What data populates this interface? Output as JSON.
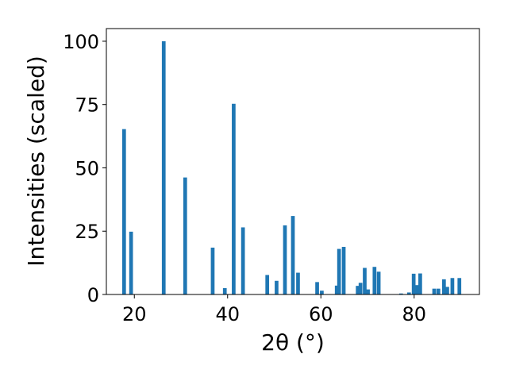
{
  "chart_data": {
    "type": "bar",
    "title": "",
    "xlabel": "2θ (°)",
    "ylabel": "Intensities (scaled)",
    "xlim": [
      14,
      94
    ],
    "ylim": [
      0,
      105
    ],
    "xticks": [
      20,
      40,
      60,
      80
    ],
    "yticks": [
      0,
      25,
      50,
      75,
      100
    ],
    "grid": false,
    "bar_color": "#1f77b4",
    "series": [
      {
        "x": [
          17.8,
          19.3,
          26.3,
          30.9,
          36.8,
          39.4,
          41.3,
          43.3,
          48.5,
          50.5,
          52.3,
          54.0,
          55.1,
          59.2,
          60.2,
          63.4,
          63.9,
          64.9,
          67.9,
          68.5,
          69.4,
          70.1,
          71.5,
          72.4,
          77.2,
          78.9,
          79.9,
          80.7,
          81.3,
          84.3,
          85.2,
          86.4,
          87.1,
          88.2,
          89.7
        ],
        "values": [
          65.3,
          24.8,
          100.0,
          46.2,
          18.5,
          2.5,
          75.3,
          26.5,
          7.7,
          5.4,
          27.3,
          31.0,
          8.6,
          4.9,
          1.5,
          3.5,
          18.0,
          18.8,
          3.4,
          4.6,
          10.5,
          2.0,
          10.9,
          9.0,
          0.4,
          0.8,
          8.2,
          3.7,
          8.3,
          2.3,
          2.3,
          6.0,
          3.0,
          6.5,
          6.5
        ]
      }
    ]
  }
}
